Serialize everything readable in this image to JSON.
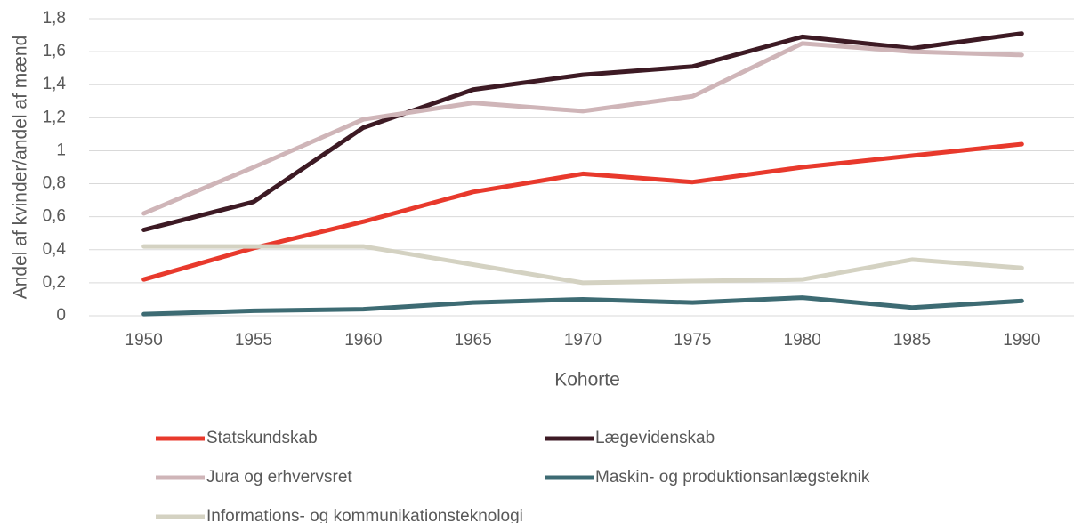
{
  "chart_data": {
    "type": "line",
    "x_label": "Kohorte",
    "y_label": "Andel af kvinder/andel af mænd",
    "categories": [
      "1950",
      "1955",
      "1960",
      "1965",
      "1970",
      "1975",
      "1980",
      "1985",
      "1990"
    ],
    "ylim": [
      0,
      1.8
    ],
    "yticks": [
      0,
      {
        "value": 0.2,
        "label": "0,2"
      },
      {
        "value": 0.4,
        "label": "0,4"
      },
      {
        "value": 0.6,
        "label": "0,6"
      },
      {
        "value": 0.8,
        "label": "0,8"
      },
      1,
      {
        "value": 1.2,
        "label": "1,2"
      },
      {
        "value": 1.4,
        "label": "1,4"
      },
      {
        "value": 1.6,
        "label": "1,6"
      },
      {
        "value": 1.8,
        "label": "1,8"
      }
    ],
    "grid": true,
    "legend": "bottom",
    "series": [
      {
        "name": "Statskundskab",
        "color": "#e8392c",
        "values": [
          0.22,
          0.41,
          0.57,
          0.75,
          0.86,
          0.81,
          0.9,
          0.97,
          1.04
        ]
      },
      {
        "name": "Lægevidenskab",
        "color": "#3d1a24",
        "values": [
          0.52,
          0.69,
          1.14,
          1.37,
          1.46,
          1.51,
          1.69,
          1.62,
          1.71
        ]
      },
      {
        "name": "Jura og erhvervsret",
        "color": "#cfb5b8",
        "values": [
          0.62,
          0.9,
          1.19,
          1.29,
          1.24,
          1.33,
          1.65,
          1.6,
          1.58
        ]
      },
      {
        "name": "Maskin- og produktionsanlægsteknik",
        "color": "#3d6b73",
        "values": [
          0.01,
          0.03,
          0.04,
          0.08,
          0.1,
          0.08,
          0.11,
          0.05,
          0.09
        ]
      },
      {
        "name": "Informations- og kommunikationsteknologi",
        "color": "#d4d2c2",
        "values": [
          0.42,
          0.42,
          0.42,
          0.31,
          0.2,
          0.21,
          0.22,
          0.34,
          0.29
        ]
      }
    ]
  }
}
